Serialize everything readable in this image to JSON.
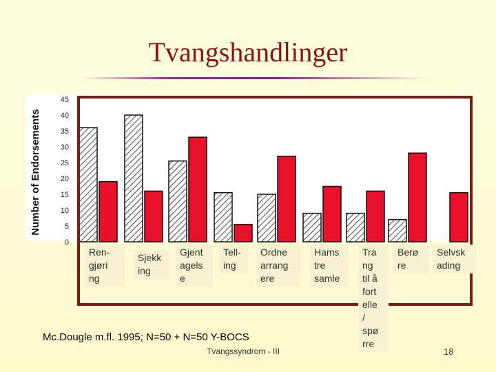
{
  "slide": {
    "title": "Tvangshandlinger",
    "source": "Mc.Dougle m.fl. 1995; N=50 + N=50  Y-BOCS",
    "footer": "Tvangssyndrom - III",
    "page_number": "18"
  },
  "colors": {
    "title": "#8a1414",
    "frame": "#7a1c10",
    "series_red": "#e8102a",
    "series_hatched": "#222222",
    "label_bg": "#f6f1d0"
  },
  "chart_data": {
    "type": "bar",
    "ylabel": "Number of Endorsements",
    "ylim": [
      0,
      45
    ],
    "yticks": [
      "0",
      "5",
      "10",
      "15",
      "20",
      "25",
      "30",
      "35",
      "40",
      "45"
    ],
    "categories": [
      "Ren-\ngjøri\nng",
      "Sjekk\ning",
      "Gjent\nagels\ne",
      "Tell-\ning",
      "Ordne\narrang\nere",
      "Hams\ntre\nsamle",
      "Tra\nng\ntil å\nfort\nelle\n/\nspø\nrre",
      "Berø\nre",
      "Selvsk\nading"
    ],
    "series": [
      {
        "values": [
          36,
          40,
          25.5,
          15.5,
          15,
          9,
          9,
          7,
          0
        ]
      },
      {
        "values": [
          19,
          16,
          33,
          5.5,
          27,
          17.5,
          16,
          28,
          15.5
        ]
      }
    ],
    "grid": false
  }
}
